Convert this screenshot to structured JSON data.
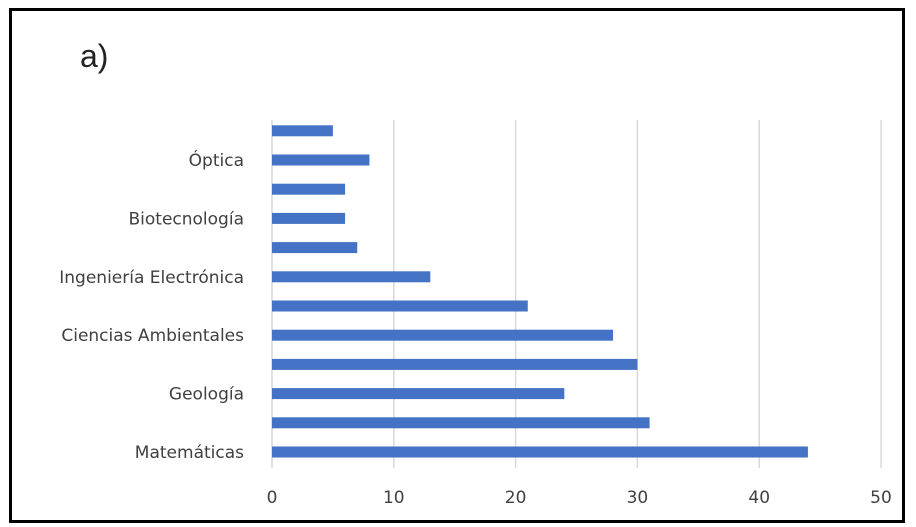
{
  "panel_label": "a)",
  "chart_data": {
    "type": "bar",
    "orientation": "horizontal",
    "categories": [
      "Matemáticas",
      "",
      "Geología",
      "",
      "Ciencias Ambientales",
      "",
      "Ingeniería Electrónica",
      "",
      "Biotecnología",
      "",
      "Óptica",
      ""
    ],
    "values": [
      44,
      31,
      24,
      30,
      28,
      21,
      13,
      7,
      6,
      6,
      8,
      5
    ],
    "xlim": [
      0,
      50
    ],
    "xticks": [
      0,
      10,
      20,
      30,
      40,
      50
    ],
    "grid": "vertical",
    "legend": "none",
    "bar_color": "#4472C4",
    "grid_color": "#D9D9D9"
  }
}
